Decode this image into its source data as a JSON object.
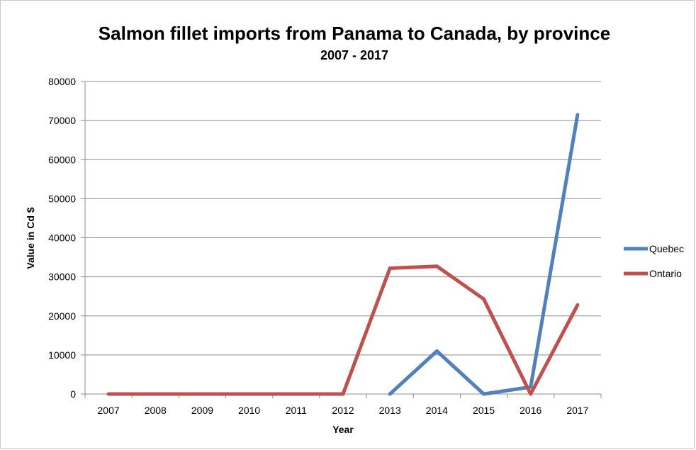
{
  "chart_data": {
    "type": "line",
    "title": "Salmon fillet imports from Panama to Canada, by province",
    "subtitle": "2007 - 2017",
    "xlabel": "Year",
    "ylabel": "Value in Cd $",
    "ylim": [
      0,
      80000
    ],
    "yticks": [
      "0",
      "10000",
      "20000",
      "30000",
      "40000",
      "50000",
      "60000",
      "70000",
      "80000"
    ],
    "grid": true,
    "legend_position": "right",
    "categories": [
      "2007",
      "2008",
      "2009",
      "2010",
      "2011",
      "2012",
      "2013",
      "2014",
      "2015",
      "2016",
      "2017"
    ],
    "series": [
      {
        "name": "Quebec",
        "color": "#4f81bd",
        "values": [
          null,
          null,
          null,
          null,
          null,
          null,
          0,
          11000,
          0,
          1800,
          71500
        ]
      },
      {
        "name": "Ontario",
        "color": "#c0504d",
        "values": [
          0,
          0,
          0,
          0,
          0,
          0,
          32200,
          32700,
          24300,
          0,
          22800
        ]
      }
    ]
  }
}
